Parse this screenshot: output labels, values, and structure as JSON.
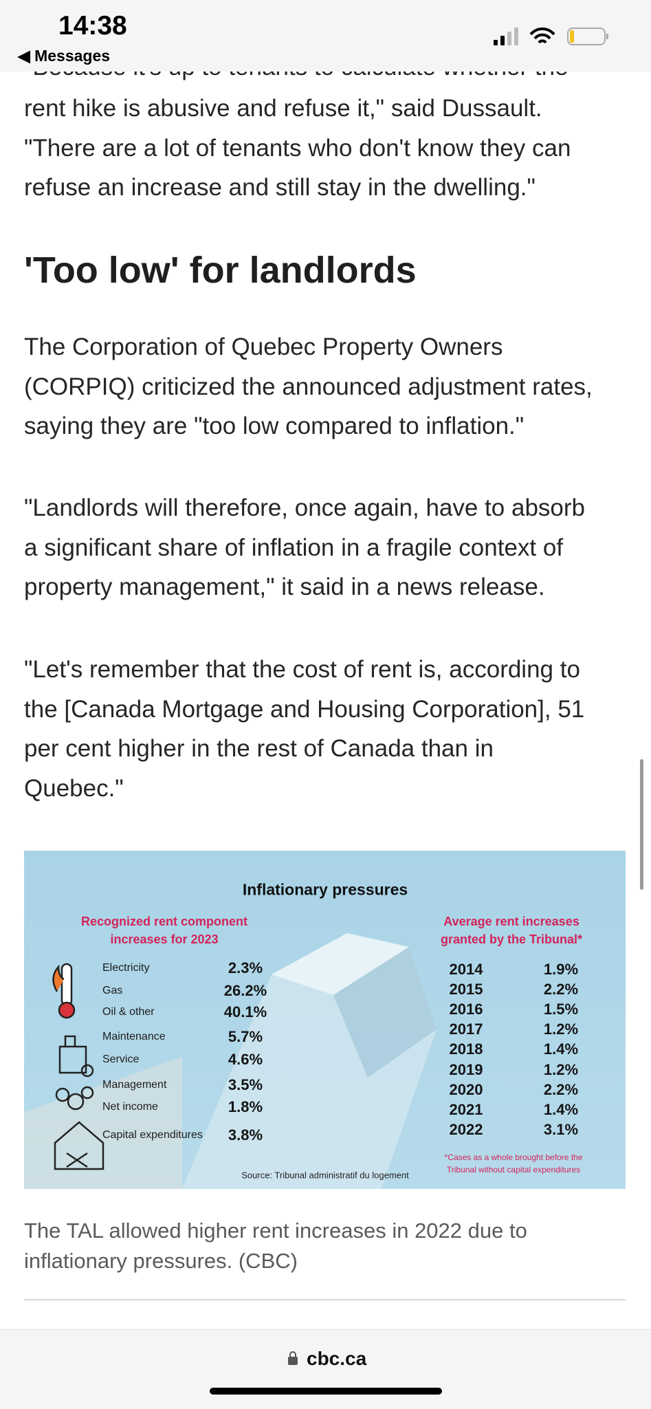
{
  "status_bar": {
    "time": "14:38",
    "back_label": "◀ Messages"
  },
  "article": {
    "partial_line": "\"Because it's up to tenants to calculate whether the",
    "paragraphs": [
      [
        "rent hike is abusive and refuse it,\" said Dussault.",
        "\"There are a lot of tenants who don't know they can",
        "refuse an increase and still stay in the dwelling.\""
      ],
      [
        "The Corporation of Quebec Property Owners",
        "(CORPIQ) criticized the announced adjustment rates,",
        "saying they are \"too low compared to inflation.\""
      ],
      [
        "\"Landlords will therefore, once again, have to absorb",
        "a significant share of inflation in a fragile context of",
        "property management,\" it said in a news release."
      ],
      [
        "\"Let's remember that the cost of rent is, according to",
        "the [Canada Mortgage and Housing Corporation], 51",
        "per cent higher in the rest of Canada than in",
        "Quebec.\""
      ]
    ],
    "heading": "'Too low' for landlords"
  },
  "infographic": {
    "title": "Inflationary pressures",
    "left_heading": [
      "Recognized rent component",
      "increases for 2023"
    ],
    "components": [
      {
        "label": "Electricity",
        "value": "2.3%"
      },
      {
        "label": "Gas",
        "value": "26.2%"
      },
      {
        "label": "Oil & other",
        "value": "40.1%"
      },
      {
        "label": "Maintenance",
        "value": "5.7%"
      },
      {
        "label": "Service",
        "value": "4.6%"
      },
      {
        "label": "Management",
        "value": "3.5%"
      },
      {
        "label": "Net income",
        "value": "1.8%"
      },
      {
        "label": "Capital expenditures",
        "value": "3.8%"
      }
    ],
    "right_heading": [
      "Average rent increases",
      "granted by the Tribunal*"
    ],
    "years": [
      {
        "year": "2014",
        "value": "1.9%"
      },
      {
        "year": "2015",
        "value": "2.2%"
      },
      {
        "year": "2016",
        "value": "1.5%"
      },
      {
        "year": "2017",
        "value": "1.2%"
      },
      {
        "year": "2018",
        "value": "1.4%"
      },
      {
        "year": "2019",
        "value": "1.2%"
      },
      {
        "year": "2020",
        "value": "2.2%"
      },
      {
        "year": "2021",
        "value": "1.4%"
      },
      {
        "year": "2022",
        "value": "3.1%"
      }
    ],
    "footnote": [
      "*Cases as a whole brought before the",
      "Tribunal without capital expenditures"
    ],
    "source": "Source: Tribunal administratif du logement"
  },
  "caption": [
    "The TAL allowed higher rent increases in 2022 due to",
    "inflationary pressures. (CBC)"
  ],
  "browser": {
    "url": "cbc.ca"
  }
}
